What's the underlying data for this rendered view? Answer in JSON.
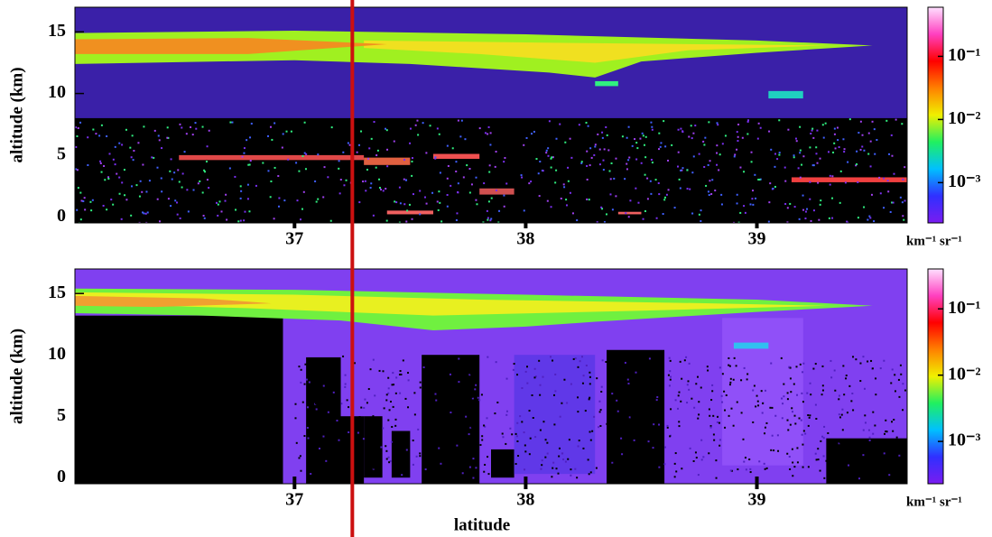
{
  "chart_data": [
    {
      "type": "heatmap",
      "ylabel": "altitude (km)",
      "xlim": [
        36.05,
        39.65
      ],
      "ylim": [
        -0.5,
        17
      ],
      "xticks": [
        37,
        38,
        39
      ],
      "yticks": [
        0,
        5,
        10,
        15
      ],
      "colorbar": {
        "scale": "log",
        "lim": [
          0.00023,
          0.6
        ],
        "ticks": [
          {
            "value": 0.001,
            "label": "10⁻³"
          },
          {
            "value": 0.01,
            "label": "10⁻²"
          },
          {
            "value": 0.1,
            "label": "10⁻¹"
          }
        ],
        "label": "km⁻¹ sr⁻¹",
        "colors": [
          "#7a1cf0",
          "#3030ff",
          "#00c0ff",
          "#20f060",
          "#f0f000",
          "#ff8000",
          "#ff0000",
          "#ff40c0",
          "#ffe0ff"
        ]
      }
    },
    {
      "type": "heatmap",
      "ylabel": "altitude (km)",
      "xlabel": "latitude",
      "xlim": [
        36.05,
        39.65
      ],
      "ylim": [
        -0.5,
        17
      ],
      "xticks": [
        37,
        38,
        39
      ],
      "yticks": [
        0,
        5,
        10,
        15
      ],
      "colorbar": {
        "scale": "log",
        "lim": [
          0.00023,
          0.4
        ],
        "ticks": [
          {
            "value": 0.001,
            "label": "10⁻³"
          },
          {
            "value": 0.01,
            "label": "10⁻²"
          },
          {
            "value": 0.1,
            "label": "10⁻¹"
          }
        ],
        "label": "km⁻¹ sr⁻¹",
        "colors": [
          "#7a1cf0",
          "#3030ff",
          "#00c0ff",
          "#20f060",
          "#f0f000",
          "#ff8000",
          "#ff0000",
          "#ff40c0",
          "#ffe0ff"
        ]
      }
    }
  ],
  "annotation_line": {
    "x": 37.25,
    "color": "#cc1010"
  }
}
